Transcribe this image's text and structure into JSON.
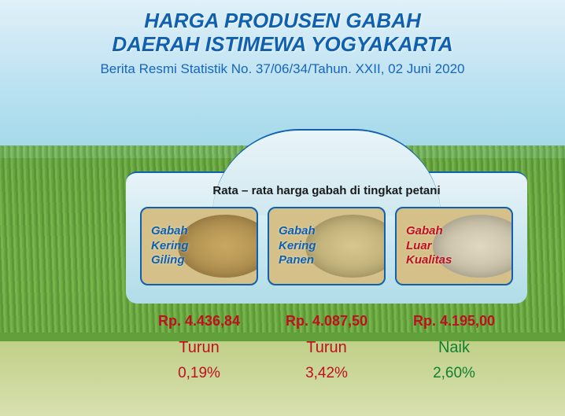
{
  "header": {
    "title_line1": "HARGA PRODUSEN GABAH",
    "title_line2": "DAERAH ISTIMEWA YOGYAKARTA",
    "subtitle": "Berita Resmi Statistik No. 37/06/34/Tahun. XXII, 02 Juni 2020",
    "title_color": "#1060b0",
    "subtitle_color": "#1565c0"
  },
  "panel": {
    "heading": "Rata – rata harga gabah di tingkat petani",
    "border_color": "#1060b0",
    "bg_gradient_top": "#e8f4f8",
    "bg_gradient_bottom": "#b0dce8"
  },
  "cards": [
    {
      "label_l1": "Gabah",
      "label_l2": "Kering",
      "label_l3": "Giling",
      "label_color": "#1060b0",
      "grain_tone": "default",
      "price": "Rp. 4.436,84",
      "trend": "Turun",
      "trend_color": "#c01020",
      "pct": "0,19%",
      "pct_color": "#c01020"
    },
    {
      "label_l1": "Gabah",
      "label_l2": "Kering",
      "label_l3": "Panen",
      "label_color": "#1060b0",
      "grain_tone": "light",
      "price": "Rp. 4.087,50",
      "trend": "Turun",
      "trend_color": "#c01020",
      "pct": "3,42%",
      "pct_color": "#c01020"
    },
    {
      "label_l1": "Gabah",
      "label_l2": "Luar",
      "label_l3": "Kualitas",
      "label_color": "#c01020",
      "grain_tone": "pale",
      "price": "Rp. 4.195,00",
      "trend": "Naik",
      "trend_color": "#108030",
      "pct": "2,60%",
      "pct_color": "#108030"
    }
  ],
  "colors": {
    "price_color": "#c01020",
    "sky_top": "#e0f0f8",
    "sky_bottom": "#a0d8e8",
    "field_green": "#6ba840",
    "ground": "#d8e0b0"
  }
}
